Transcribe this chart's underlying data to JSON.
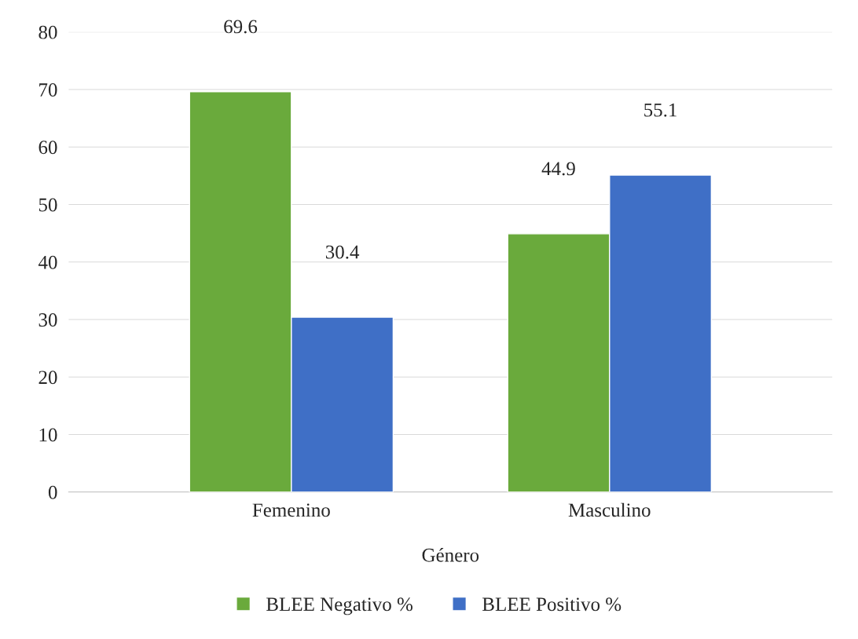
{
  "chart_data": {
    "type": "bar",
    "xlabel": "Género",
    "categories": [
      "Femenino",
      "Masculino"
    ],
    "series": [
      {
        "name": "BLEE Negativo %",
        "color": "#6aaa3c",
        "values": [
          69.6,
          44.9
        ]
      },
      {
        "name": "BLEE Positivo %",
        "color": "#3f6fc6",
        "values": [
          30.4,
          55.1
        ]
      }
    ],
    "ylim": [
      0,
      80
    ],
    "yticks": [
      0,
      10,
      20,
      30,
      40,
      50,
      60,
      70,
      80
    ],
    "grid": "y",
    "legend": "bottom",
    "data_labels": true
  }
}
